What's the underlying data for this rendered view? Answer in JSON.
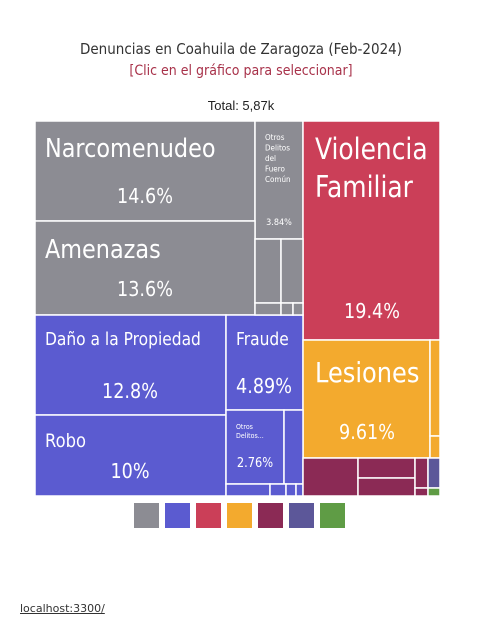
{
  "header": {
    "title": "Denuncias en Coahuila de Zaragoza (Feb-2024)",
    "subtitle": "[Clic en el gráfico para seleccionar]",
    "total": "Total: 5,87k"
  },
  "chart_data": {
    "type": "treemap",
    "tiles": [
      {
        "id": "narco",
        "name": "Narcomenudeo",
        "value": 14.6,
        "value_label": "14.6%",
        "color": "#8c8c93"
      },
      {
        "id": "otros_fuero",
        "name": "Otros Delitos del Fuero Común",
        "value": 3.84,
        "value_label": "3.84%",
        "color": "#8c8c93"
      },
      {
        "id": "amenazas",
        "name": "Amenazas",
        "value": 13.6,
        "value_label": "13.6%",
        "color": "#8c8c93"
      },
      {
        "id": "violencia",
        "name": "Violencia Familiar",
        "value": 19.4,
        "value_label": "19.4%",
        "color": "#cb3f58"
      },
      {
        "id": "dano",
        "name": "Daño a la Propiedad",
        "value": 12.8,
        "value_label": "12.8%",
        "color": "#5b5bd0"
      },
      {
        "id": "fraude",
        "name": "Fraude",
        "value": 4.89,
        "value_label": "4.89%",
        "color": "#5b5bd0"
      },
      {
        "id": "robo",
        "name": "Robo",
        "value": 10,
        "value_label": "10%",
        "color": "#5b5bd0"
      },
      {
        "id": "otros_delitos",
        "name": "Otros Delitos...",
        "value": 2.76,
        "value_label": "2.76%",
        "color": "#5b5bd0"
      },
      {
        "id": "lesiones",
        "name": "Lesiones",
        "value": 9.61,
        "value_label": "9.61%",
        "color": "#f3aa2e"
      }
    ],
    "legend_colors": [
      "#8c8c93",
      "#5b5bd0",
      "#cb3f58",
      "#f3aa2e",
      "#8b2a55",
      "#5c5799",
      "#5f9c45"
    ]
  },
  "footer": {
    "link": "localhost:3300/"
  }
}
